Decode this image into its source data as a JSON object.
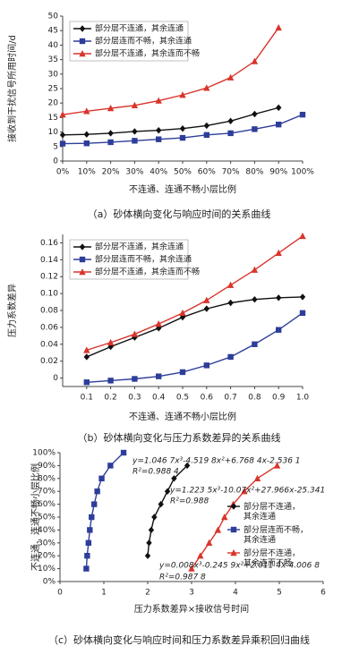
{
  "chart_data": [
    {
      "type": "line",
      "categories": [
        "0%",
        "10%",
        "20%",
        "30%",
        "40%",
        "50%",
        "60%",
        "70%",
        "80%",
        "90%",
        "100%"
      ],
      "ylim": [
        0,
        50
      ],
      "yticks": [
        0,
        5,
        10,
        15,
        20,
        25,
        30,
        35,
        40,
        45,
        50
      ],
      "y_label": "接收到干扰信号所用时间/d",
      "x_label": "不连通、连通不畅小层比例",
      "caption": "（a）砂体横向变化与响应时间的关系曲线",
      "legend": "upper left",
      "series": [
        {
          "name": "部分层不连通，其余连通",
          "color": "#111111",
          "marker": "diamond",
          "values": [
            9,
            9.2,
            9.6,
            10.2,
            10.6,
            11.2,
            12.2,
            13.8,
            16.2,
            18.4,
            null
          ]
        },
        {
          "name": "部分层连而不畅，其余连通",
          "color": "#2e3d9a",
          "marker": "square",
          "values": [
            6,
            6.1,
            6.5,
            7,
            7.5,
            8,
            9,
            9.6,
            11,
            12.6,
            16
          ]
        },
        {
          "name": "部分层不连通，其余连而不畅",
          "color": "#d9342b",
          "marker": "triangle",
          "values": [
            16,
            17.2,
            18.2,
            19.2,
            20.8,
            22.8,
            25.2,
            28.8,
            34.4,
            46,
            null
          ]
        }
      ]
    },
    {
      "type": "line",
      "x": [
        0.1,
        0.2,
        0.3,
        0.4,
        0.5,
        0.6,
        0.7,
        0.8,
        0.9,
        1
      ],
      "xlim": [
        0,
        1
      ],
      "xticks": [
        0.1,
        0.2,
        0.3,
        0.4,
        0.5,
        0.6,
        0.7,
        0.8,
        0.9,
        {
          "value": 1,
          "label": "1.0"
        }
      ],
      "ylim": [
        -0.01,
        0.17
      ],
      "yticks": [
        0,
        0.02,
        0.04,
        0.06,
        0.08,
        {
          "value": 0.1,
          "label": "0.10"
        },
        0.12,
        0.14,
        0.16
      ],
      "y_label": "压力系数差异",
      "x_label": "不连通、连通不畅小层比例",
      "caption": "（b）砂体横向变化与压力系数差异的关系曲线",
      "legend": "upper left",
      "series": [
        {
          "name": "部分层不连通，其余连通",
          "color": "#111111",
          "marker": "diamond",
          "values": [
            0.025,
            0.037,
            0.048,
            0.059,
            0.072,
            0.082,
            0.089,
            0.093,
            0.095,
            0.096
          ]
        },
        {
          "name": "部分层连而不畅，其余连通",
          "color": "#2e3d9a",
          "marker": "square",
          "values": [
            -0.005,
            -0.003,
            -0.001,
            0.002,
            0.007,
            0.015,
            0.025,
            0.04,
            0.057,
            0.077
          ]
        },
        {
          "name": "部分层不连通，其余连而不畅",
          "color": "#d9342b",
          "marker": "triangle",
          "values": [
            0.033,
            0.042,
            0.052,
            0.064,
            0.077,
            0.092,
            0.11,
            0.128,
            0.148,
            0.168
          ]
        }
      ]
    },
    {
      "type": "line",
      "xlim": [
        0,
        6
      ],
      "xticks": [
        0,
        1,
        2,
        3,
        4,
        5,
        6
      ],
      "ylim": [
        0,
        100
      ],
      "yticks": [
        {
          "value": 0,
          "label": "0%"
        },
        {
          "value": 10,
          "label": "10%"
        },
        {
          "value": 20,
          "label": "20%"
        },
        {
          "value": 30,
          "label": "30%"
        },
        {
          "value": 40,
          "label": "40%"
        },
        {
          "value": 50,
          "label": "50%"
        },
        {
          "value": 60,
          "label": "60%"
        },
        {
          "value": 70,
          "label": "70%"
        },
        {
          "value": 80,
          "label": "80%"
        },
        {
          "value": 90,
          "label": "90%"
        },
        {
          "value": 100,
          "label": "100%"
        }
      ],
      "y_label": "不连通、连通不畅小层比例",
      "x_label": "压力系数差异×接收信号时间",
      "caption": "（c）砂体横向变化与响应时间和压力系数差异乘积回归曲线",
      "legend": "right",
      "series": [
        {
          "name": "部分层不连通，其余连通",
          "color": "#111111",
          "marker": "diamond",
          "x": [
            2.0,
            2.03,
            2.08,
            2.15,
            2.3,
            2.45,
            2.6,
            2.9
          ],
          "values": [
            20,
            30,
            40,
            50,
            60,
            70,
            80,
            90
          ]
        },
        {
          "name": "部分层连而不畅，其余连通",
          "color": "#2e3d9a",
          "marker": "square",
          "x": [
            0.6,
            0.62,
            0.65,
            0.68,
            0.72,
            0.78,
            0.85,
            0.95,
            1.15,
            1.45
          ],
          "values": [
            10,
            20,
            30,
            40,
            50,
            60,
            70,
            80,
            90,
            100
          ]
        },
        {
          "name": "部分层不连通，其余连而不畅",
          "color": "#d9342b",
          "marker": "triangle",
          "x": [
            3.0,
            3.2,
            3.4,
            3.6,
            3.75,
            3.95,
            4.2,
            4.5,
            4.95
          ],
          "values": [
            10,
            20,
            30,
            40,
            50,
            60,
            70,
            80,
            90
          ]
        }
      ],
      "annotations": [
        {
          "text": "y=1.046 7x³-4.519 8x²+6.768 4x-2.536 1",
          "color": "#2e3d9a"
        },
        {
          "text": "R²=0.988 4",
          "color": "#2e3d9a"
        },
        {
          "text": "y=1.223 5x³-10.07x²+27.966x-25.341",
          "color": "#111111"
        },
        {
          "text": "R²=0.988",
          "color": "#111111"
        },
        {
          "text": "y=0.008x³-0.245 9x²+2.011 4x-4.006 8",
          "color": "#d9342b"
        },
        {
          "text": "R²=0.987 8",
          "color": "#d9342b"
        }
      ]
    }
  ]
}
